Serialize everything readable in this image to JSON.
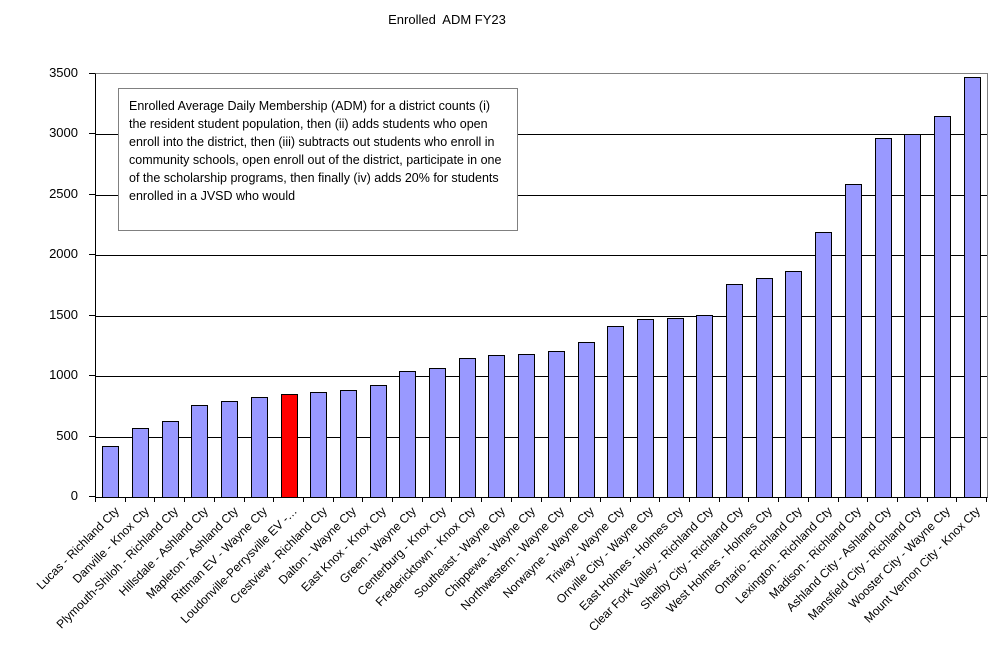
{
  "colors": {
    "bar_fill": "#9999FF",
    "bar_border": "#000000",
    "highlight_fill": "#FF0000",
    "gridline": "#000000",
    "plot_border": "#808080",
    "axis": "#000000",
    "background": "#FFFFFF",
    "text": "#000000"
  },
  "chart_data": {
    "type": "bar",
    "title": "Enrolled  ADM FY23",
    "xlabel": "",
    "ylabel": "",
    "ylim": [
      0,
      3500
    ],
    "yticks": [
      0,
      500,
      1000,
      1500,
      2000,
      2500,
      3000,
      3500
    ],
    "grid": true,
    "legend": false,
    "annotation": "Enrolled Average Daily Membership (ADM) for a district counts (i) the resident student population, then (ii) adds students who open enroll into the district, then (iii) subtracts out students who enroll in community schools, open enroll out of the district, participate in one of the scholarship programs, then finally (iv) adds 20% for students enrolled in a JVSD who would",
    "highlight_index": 6,
    "highlighted_category": "Loudonville-Perrysville EV -…",
    "categories": [
      "Lucas - Richland Cty",
      "Danville - Knox Cty",
      "Plymouth-Shiloh - Richland Cty",
      "Hillsdale - Ashland Cty",
      "Mapleton - Ashland Cty",
      "Rittman EV - Wayne Cty",
      "Loudonville-Perrysville EV -…",
      "Crestview - Richland Cty",
      "Dalton - Wayne Cty",
      "East Knox - Knox Cty",
      "Green - Wayne Cty",
      "Centerburg - Knox Cty",
      "Fredericktown - Knox Cty",
      "Southeast - Wayne Cty",
      "Chippewa - Wayne Cty",
      "Northwestern - Wayne Cty",
      "Norwayne - Wayne Cty",
      "Triway - Wayne Cty",
      "Orrville City - Wayne Cty",
      "East Holmes - Holmes Cty",
      "Clear Fork Valley - Richland Cty",
      "Shelby City - Richland Cty",
      "West Holmes - Holmes Cty",
      "Ontario - Richland Cty",
      "Lexington - Richland Cty",
      "Madison - Richland Cty",
      "Ashland City - Ashland Cty",
      "Mansfield City - Richland Cty",
      "Wooster City - Wayne Cty",
      "Mount Vernon City - Knox Cty"
    ],
    "values": [
      425,
      570,
      625,
      760,
      795,
      825,
      855,
      870,
      885,
      925,
      1040,
      1065,
      1150,
      1175,
      1185,
      1210,
      1285,
      1415,
      1470,
      1480,
      1510,
      1760,
      1815,
      1870,
      2195,
      2590,
      2970,
      3000,
      3155,
      3475
    ]
  }
}
